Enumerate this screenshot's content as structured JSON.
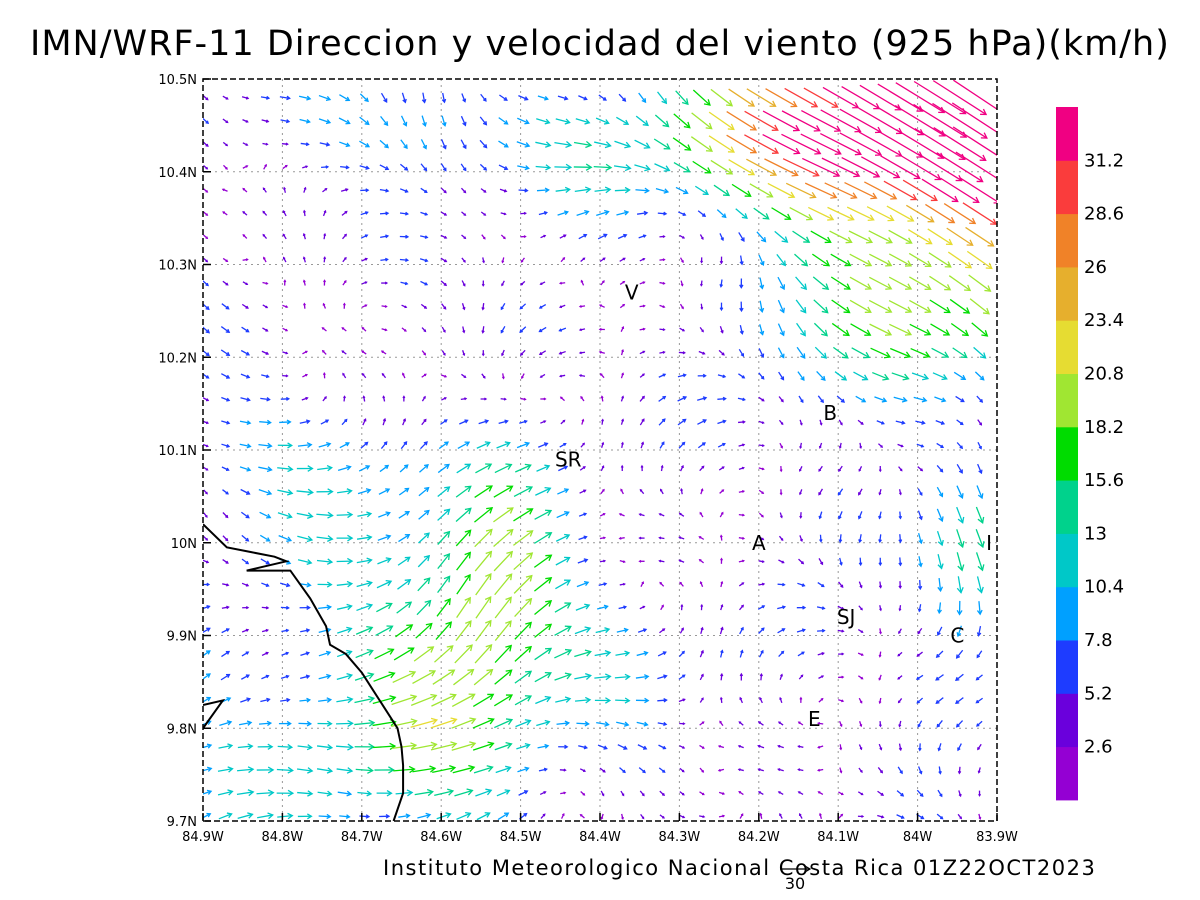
{
  "title": "IMN/WRF-11 Direccion y velocidad del viento (925 hPa)(km/h)",
  "footer": "Instituto Meteorologico Nacional Costa Rica 01Z22OCT2023",
  "reference_vector": {
    "label": "30",
    "value": 30
  },
  "map": {
    "lon_range": [
      -84.9,
      -83.9
    ],
    "lat_range": [
      9.7,
      10.5
    ],
    "lon_ticks": [
      {
        "value": -84.9,
        "label": "84.9W"
      },
      {
        "value": -84.8,
        "label": "84.8W"
      },
      {
        "value": -84.7,
        "label": "84.7W"
      },
      {
        "value": -84.6,
        "label": "84.6W"
      },
      {
        "value": -84.5,
        "label": "84.5W"
      },
      {
        "value": -84.4,
        "label": "84.4W"
      },
      {
        "value": -84.3,
        "label": "84.3W"
      },
      {
        "value": -84.2,
        "label": "84.2W"
      },
      {
        "value": -84.1,
        "label": "84.1W"
      },
      {
        "value": -84.0,
        "label": "84W"
      },
      {
        "value": -83.9,
        "label": "83.9W"
      }
    ],
    "lat_ticks": [
      {
        "value": 9.7,
        "label": "9.7N"
      },
      {
        "value": 9.8,
        "label": "9.8N"
      },
      {
        "value": 9.9,
        "label": "9.9N"
      },
      {
        "value": 10.0,
        "label": "10N"
      },
      {
        "value": 10.1,
        "label": "10.1N"
      },
      {
        "value": 10.2,
        "label": "10.2N"
      },
      {
        "value": 10.3,
        "label": "10.3N"
      },
      {
        "value": 10.4,
        "label": "10.4N"
      },
      {
        "value": 10.5,
        "label": "10.5N"
      }
    ],
    "grid": true,
    "cities": [
      {
        "label": "V",
        "lon": -84.36,
        "lat": 10.27
      },
      {
        "label": "SR",
        "lon": -84.44,
        "lat": 10.09
      },
      {
        "label": "B",
        "lon": -84.11,
        "lat": 10.14
      },
      {
        "label": "A",
        "lon": -84.2,
        "lat": 10.0
      },
      {
        "label": "I",
        "lon": -83.91,
        "lat": 10.0
      },
      {
        "label": "SJ",
        "lon": -84.09,
        "lat": 9.92
      },
      {
        "label": "C",
        "lon": -83.95,
        "lat": 9.9
      },
      {
        "label": "E",
        "lon": -84.13,
        "lat": 9.81
      }
    ],
    "coastline": [
      [
        -84.9,
        10.02
      ],
      [
        -84.87,
        9.995
      ],
      [
        -84.84,
        9.99
      ],
      [
        -84.81,
        9.985
      ],
      [
        -84.795,
        9.98
      ],
      [
        -84.82,
        9.975
      ],
      [
        -84.845,
        9.97
      ],
      [
        -84.82,
        9.97
      ],
      [
        -84.79,
        9.97
      ],
      [
        -84.765,
        9.94
      ],
      [
        -84.745,
        9.91
      ],
      [
        -84.74,
        9.89
      ],
      [
        -84.72,
        9.88
      ],
      [
        -84.7,
        9.86
      ],
      [
        -84.685,
        9.84
      ],
      [
        -84.67,
        9.82
      ],
      [
        -84.655,
        9.8
      ],
      [
        -84.65,
        9.78
      ],
      [
        -84.648,
        9.76
      ],
      [
        -84.648,
        9.73
      ],
      [
        -84.66,
        9.7
      ]
    ],
    "peninsula_tip": [
      [
        -84.9,
        9.825
      ],
      [
        -84.875,
        9.83
      ],
      [
        -84.9,
        9.8
      ]
    ]
  },
  "colorbar": {
    "colors": [
      "#9400d3",
      "#6a00dc",
      "#1e3cff",
      "#00a0ff",
      "#00c8c8",
      "#00d28c",
      "#00dc00",
      "#a0e632",
      "#e6dc32",
      "#e6af2d",
      "#f08228",
      "#fa3c3c",
      "#f00082"
    ],
    "labels": [
      "2.6",
      "5.2",
      "7.8",
      "10.4",
      "13",
      "15.6",
      "18.2",
      "20.8",
      "23.4",
      "26",
      "28.6",
      "31.2"
    ]
  }
}
